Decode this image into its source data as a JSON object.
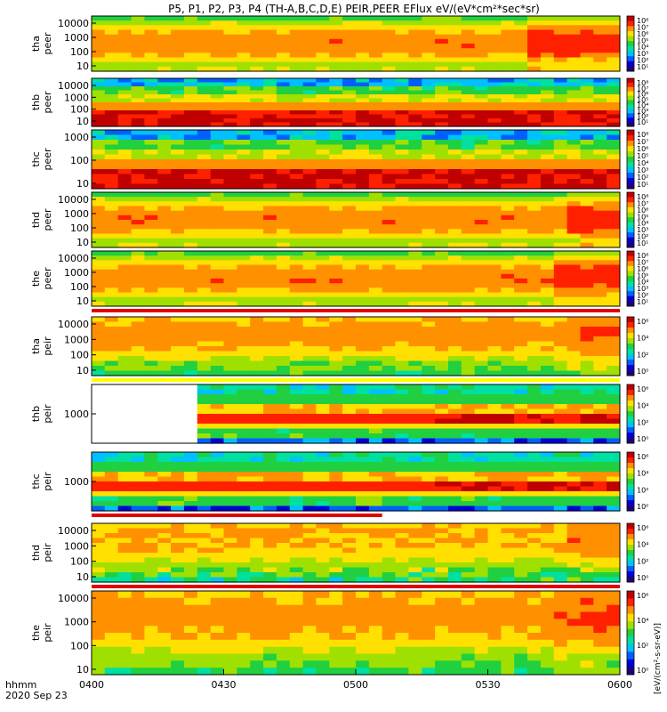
{
  "title": "P5, P1, P2, P3, P4 (TH-A,B,C,D,E) PEIR,PEER EFlux eV/(eV*cm²*sec*sr)",
  "footer": {
    "time_label": "hhmm",
    "date_label": "2020 Sep 23"
  },
  "colorbar_unit": "[eV/(cm²-s-sr-eV)]",
  "chart_data": {
    "type": "heatmap",
    "x_ticks": [
      "0400",
      "0430",
      "0500",
      "0530",
      "0600"
    ],
    "x_range": [
      "0400",
      "0600"
    ],
    "panels": [
      {
        "label1": "tha",
        "label2": "peer",
        "yticks": [
          "10000",
          "1000",
          "100",
          "10"
        ],
        "cb_ticks": [
          "10⁸",
          "10⁷",
          "10⁶",
          "10⁵",
          "10⁴",
          "10³",
          "10²",
          "10¹"
        ],
        "profile": "peer_broad",
        "activity": 0.82,
        "band": "none"
      },
      {
        "label1": "thb",
        "label2": "peer",
        "yticks": [
          "10000",
          "1000",
          "100",
          "10"
        ],
        "cb_ticks": [
          "10⁸",
          "10⁷",
          "10⁶",
          "10⁵",
          "10⁴",
          "10³",
          "10²",
          "10¹"
        ],
        "profile": "peer_low",
        "activity": 0.0,
        "band": "none"
      },
      {
        "label1": "thc",
        "label2": "peer",
        "yticks": [
          "1000",
          "100",
          "10"
        ],
        "cb_ticks": [
          "10⁸",
          "10⁷",
          "10⁶",
          "10⁵",
          "10⁴",
          "10³",
          "10²",
          "10¹"
        ],
        "profile": "peer_low",
        "activity": 0.0,
        "band": "none"
      },
      {
        "label1": "thd",
        "label2": "peer",
        "yticks": [
          "10000",
          "1000",
          "100",
          "10"
        ],
        "cb_ticks": [
          "10⁸",
          "10⁷",
          "10⁶",
          "10⁵",
          "10⁴",
          "10³",
          "10²",
          "10¹"
        ],
        "profile": "peer_broad",
        "activity": 0.88,
        "band": "none"
      },
      {
        "label1": "the",
        "label2": "peer",
        "yticks": [
          "10000",
          "1000",
          "100",
          "10"
        ],
        "cb_ticks": [
          "10⁸",
          "10⁷",
          "10⁶",
          "10⁵",
          "10⁴",
          "10³",
          "10²",
          "10¹"
        ],
        "profile": "peer_broad",
        "activity": 0.85,
        "band": "red_full"
      },
      {
        "label1": "tha",
        "label2": "peir",
        "yticks": [
          "10000",
          "1000",
          "100",
          "10"
        ],
        "cb_ticks": [
          "10⁶",
          "10⁴",
          "10²",
          "10⁰"
        ],
        "profile": "peir_high",
        "activity": 0.88,
        "band": "yellow_full"
      },
      {
        "label1": "thb",
        "label2": "peir",
        "yticks": [
          "1000"
        ],
        "cb_ticks": [
          "10⁶",
          "10⁴",
          "10²",
          "10⁰"
        ],
        "profile": "peir_band",
        "activity": 0.0,
        "band": "none",
        "gap_until": 0.18
      },
      {
        "label1": "thc",
        "label2": "peir",
        "yticks": [
          "1000"
        ],
        "cb_ticks": [
          "10⁶",
          "10⁴",
          "10²",
          "10⁰"
        ],
        "profile": "peir_band",
        "activity": 0.0,
        "band": "red_partial"
      },
      {
        "label1": "thd",
        "label2": "peir",
        "yticks": [
          "10000",
          "1000",
          "100",
          "10"
        ],
        "cb_ticks": [
          "10⁶",
          "10⁴",
          "10²",
          "10⁰"
        ],
        "profile": "peir_noisy",
        "activity": 0.88,
        "band": "red_full"
      },
      {
        "label1": "the",
        "label2": "peir",
        "yticks": [
          "10000",
          "1000",
          "100",
          "10"
        ],
        "cb_ticks": [
          "10⁶",
          "10⁴",
          "10²",
          "10⁰"
        ],
        "profile": "peir_high",
        "activity": 0.85,
        "band": "none"
      }
    ],
    "colors": {
      "palette": [
        "#ffffff",
        "#20007a",
        "#0000d8",
        "#0060ff",
        "#00c0ff",
        "#00e0a0",
        "#20d040",
        "#a0e000",
        "#ffe000",
        "#ff9000",
        "#ff2000",
        "#c00000"
      ],
      "red_band": "#e00000",
      "yellow_band": "#ffff00"
    }
  }
}
